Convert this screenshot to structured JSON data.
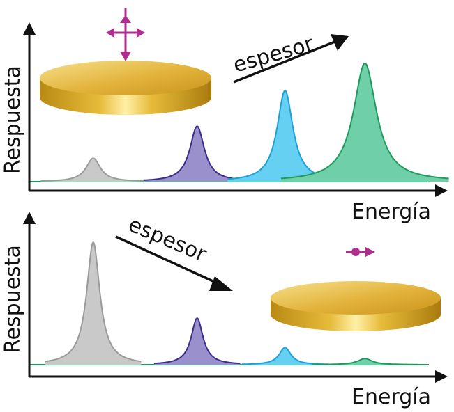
{
  "panels": [
    {
      "id": "top",
      "ylabel": "Respuesta",
      "xlabel": "Energía",
      "arrow_label": "espesor",
      "arrow_direction": "increasing",
      "polarization": "out-of-plane"
    },
    {
      "id": "bottom",
      "ylabel": "Respuesta",
      "xlabel": "Energía",
      "arrow_label": "espesor",
      "arrow_direction": "decreasing",
      "polarization": "in-plane"
    }
  ],
  "colors": {
    "gray": "#c9c9c9",
    "gray_line": "#9a9a9a",
    "purple": "#9a90cc",
    "purple_line": "#3b2d8c",
    "blue": "#66d0f2",
    "blue_line": "#1f9fd8",
    "green": "#6fcfa8",
    "green_line": "#1f9a5e",
    "polarization": "#b02d8f",
    "gold_light": "#f3d266",
    "gold_dark": "#b98a13"
  },
  "chart_data": [
    {
      "type": "line",
      "title": "",
      "xlabel": "Energía",
      "ylabel": "Respuesta",
      "xlim": [
        0,
        1
      ],
      "ylim": [
        0,
        1
      ],
      "series": [
        {
          "name": "gray",
          "peak_x": 0.16,
          "height": 0.19,
          "width": 0.022
        },
        {
          "name": "purple",
          "peak_x": 0.42,
          "height": 0.45,
          "width": 0.022
        },
        {
          "name": "blue",
          "peak_x": 0.64,
          "height": 0.74,
          "width": 0.024
        },
        {
          "name": "green",
          "peak_x": 0.84,
          "height": 0.96,
          "width": 0.035
        }
      ]
    },
    {
      "type": "line",
      "title": "",
      "xlabel": "Energía",
      "ylabel": "Respuesta",
      "xlim": [
        0,
        1
      ],
      "ylim": [
        0,
        1
      ],
      "series": [
        {
          "name": "gray",
          "peak_x": 0.16,
          "height": 1.0,
          "width": 0.02
        },
        {
          "name": "purple",
          "peak_x": 0.42,
          "height": 0.38,
          "width": 0.018
        },
        {
          "name": "blue",
          "peak_x": 0.64,
          "height": 0.14,
          "width": 0.018
        },
        {
          "name": "green",
          "peak_x": 0.84,
          "height": 0.05,
          "width": 0.022
        }
      ]
    }
  ]
}
